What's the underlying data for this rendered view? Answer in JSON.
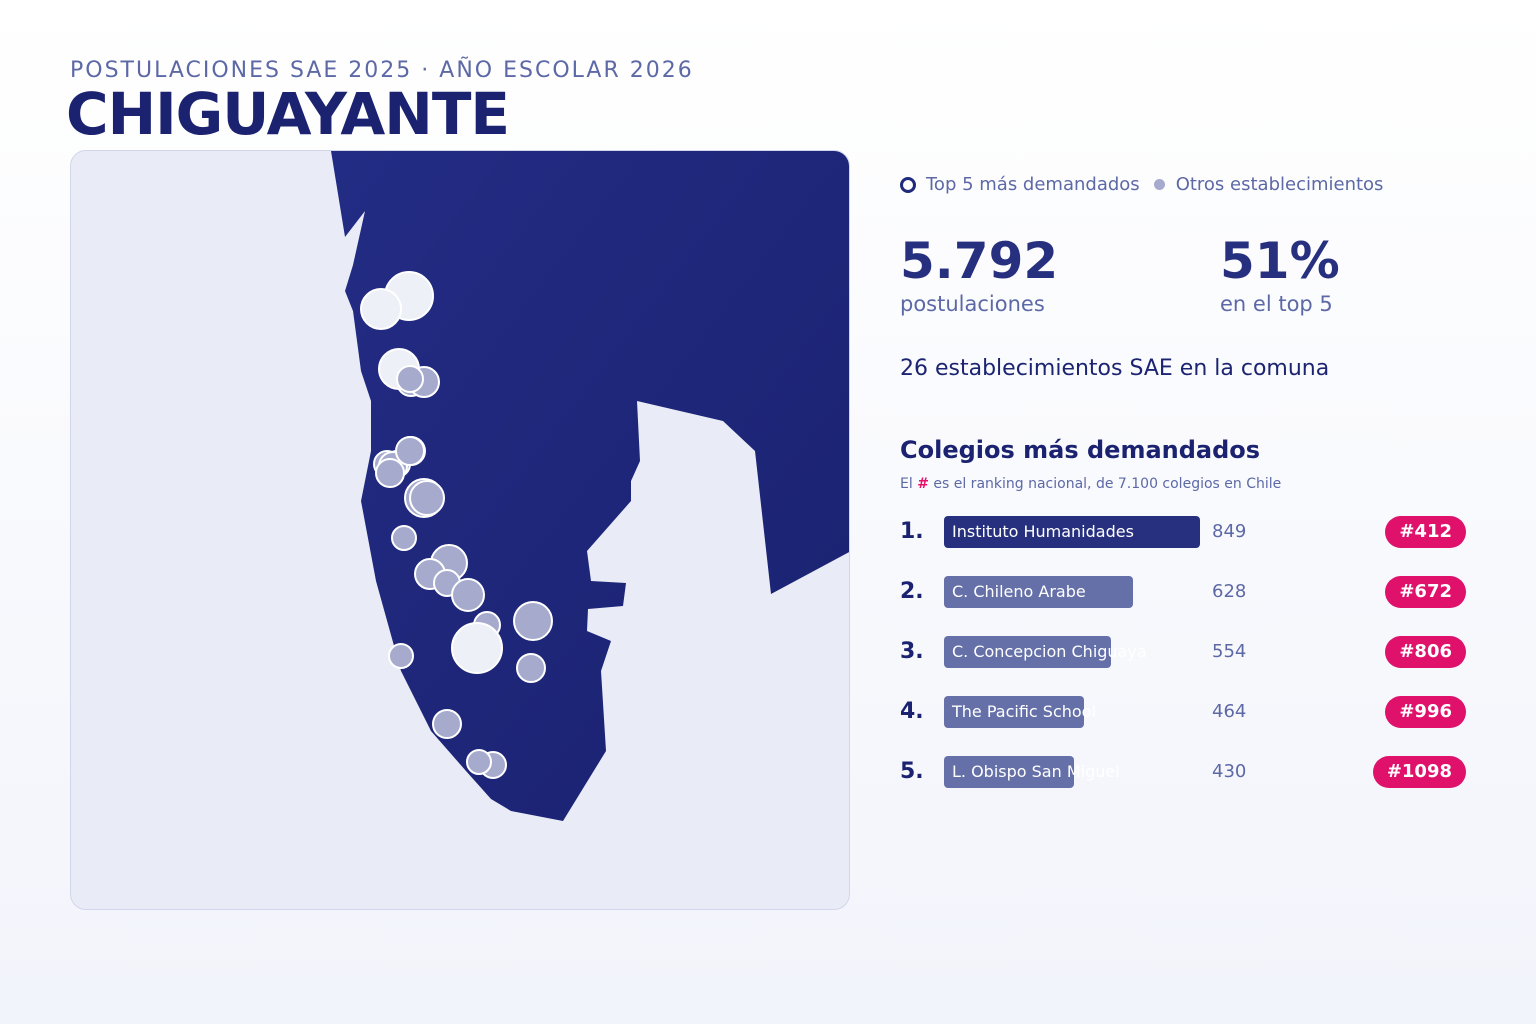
{
  "header": {
    "subtitle": "POSTULACIONES SAE 2025 · AÑO ESCOLAR 2026",
    "title": "CHIGUAYANTE"
  },
  "legend": {
    "top5": "Top 5 más demandados",
    "others": "Otros establecimientos"
  },
  "stats": {
    "applications_value": "5.792",
    "applications_label": "postulaciones",
    "top5_share_value": "51%",
    "top5_share_label": "en el top 5"
  },
  "establishments_text": "26 establecimientos SAE en la comuna",
  "ranking": {
    "title": "Colegios más demandados",
    "note_prefix": "El ",
    "note_hash": "#",
    "note_suffix": " es el ranking nacional, de 7.100 colegios en Chile",
    "max_applications": 849,
    "schools": [
      {
        "rank": "1.",
        "name": "Instituto Humanidades",
        "applications": 849,
        "count": "849",
        "national_rank": "#412"
      },
      {
        "rank": "2.",
        "name": "C. Chileno Arabe",
        "applications": 628,
        "count": "628",
        "national_rank": "#672"
      },
      {
        "rank": "3.",
        "name": "C. Concepcion Chiguaya",
        "applications": 554,
        "count": "554",
        "national_rank": "#806"
      },
      {
        "rank": "4.",
        "name": "The Pacific School",
        "applications": 464,
        "count": "464",
        "national_rank": "#996"
      },
      {
        "rank": "5.",
        "name": "L. Obispo San Miguel",
        "applications": 430,
        "count": "430",
        "national_rank": "#1098"
      }
    ]
  },
  "colors": {
    "commune_fill": "#212a7c",
    "background_land": "#e9ecf6",
    "top5_marker": "#eef0f8",
    "other_marker": "#a6abcd",
    "bar_top1": "#27307f",
    "bar_others": "#6570a8",
    "badge": "#e0116b"
  }
}
